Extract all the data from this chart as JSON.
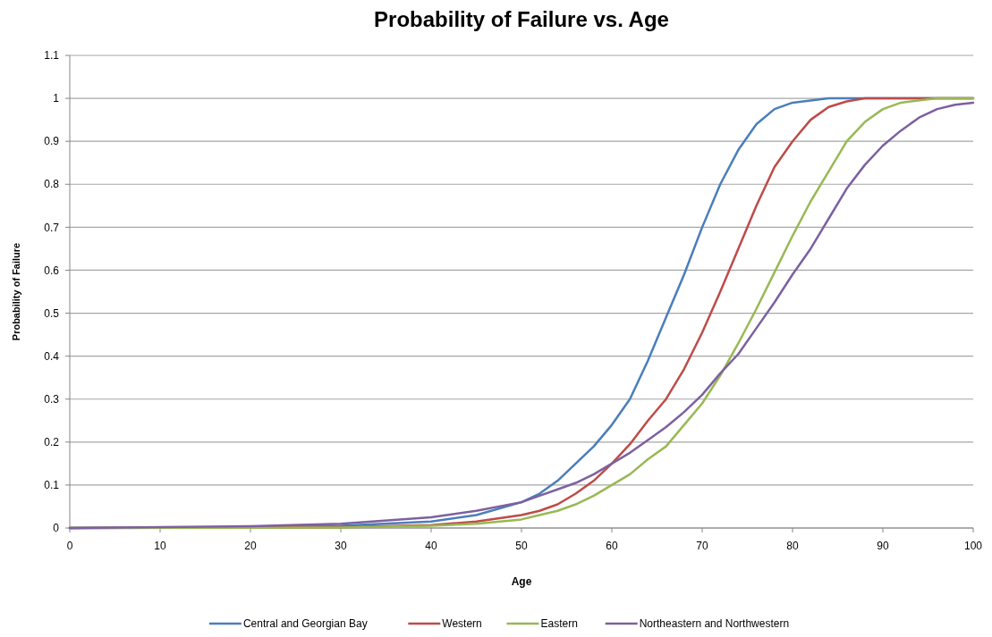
{
  "chart_data": {
    "type": "line",
    "title": "Probability of Failure vs. Age",
    "xlabel": "Age",
    "ylabel": "Probability of Failure",
    "xlim": [
      0,
      100
    ],
    "xticks": [
      0,
      10,
      20,
      30,
      40,
      50,
      60,
      70,
      80,
      90,
      100
    ],
    "ylim": [
      0,
      1.1
    ],
    "yticks": [
      0,
      0.1,
      0.2,
      0.3,
      0.4,
      0.5,
      0.6,
      0.7,
      0.8,
      0.9,
      1,
      1.1
    ],
    "grid": "y",
    "legend": "bottom",
    "marker": "none",
    "line_style": "solid",
    "series": [
      {
        "name": "Central and Georgian Bay",
        "color": "#4a7ebb",
        "x": [
          0,
          20,
          30,
          40,
          45,
          50,
          52,
          54,
          56,
          58,
          60,
          62,
          64,
          66,
          68,
          70,
          72,
          74,
          76,
          78,
          80,
          84,
          100
        ],
        "values": [
          0,
          0.002,
          0.005,
          0.015,
          0.03,
          0.06,
          0.08,
          0.11,
          0.15,
          0.19,
          0.24,
          0.3,
          0.39,
          0.49,
          0.59,
          0.7,
          0.8,
          0.88,
          0.94,
          0.975,
          0.99,
          1,
          1
        ]
      },
      {
        "name": "Western",
        "color": "#be4b48",
        "x": [
          0,
          30,
          40,
          45,
          50,
          52,
          54,
          56,
          58,
          60,
          62,
          64,
          66,
          68,
          70,
          72,
          74,
          76,
          78,
          80,
          82,
          84,
          86,
          88,
          100
        ],
        "values": [
          0,
          0.002,
          0.007,
          0.015,
          0.03,
          0.04,
          0.055,
          0.08,
          0.11,
          0.15,
          0.195,
          0.25,
          0.3,
          0.37,
          0.455,
          0.55,
          0.65,
          0.75,
          0.84,
          0.9,
          0.95,
          0.98,
          0.993,
          1,
          1
        ]
      },
      {
        "name": "Eastern",
        "color": "#98b954",
        "x": [
          0,
          30,
          40,
          45,
          50,
          52,
          54,
          56,
          58,
          60,
          62,
          64,
          66,
          68,
          70,
          72,
          74,
          76,
          78,
          80,
          82,
          84,
          86,
          88,
          90,
          92,
          96,
          100
        ],
        "values": [
          0,
          0.001,
          0.005,
          0.01,
          0.02,
          0.03,
          0.04,
          0.055,
          0.075,
          0.1,
          0.125,
          0.16,
          0.19,
          0.24,
          0.29,
          0.355,
          0.43,
          0.51,
          0.595,
          0.68,
          0.76,
          0.83,
          0.9,
          0.945,
          0.975,
          0.99,
          1,
          1
        ]
      },
      {
        "name": "Northeastern and Northwestern",
        "color": "#7d60a0",
        "x": [
          0,
          20,
          30,
          40,
          45,
          50,
          52,
          54,
          56,
          58,
          60,
          62,
          64,
          66,
          68,
          70,
          72,
          74,
          76,
          78,
          80,
          82,
          84,
          86,
          88,
          90,
          92,
          94,
          96,
          98,
          100
        ],
        "values": [
          0,
          0.004,
          0.01,
          0.025,
          0.04,
          0.06,
          0.075,
          0.09,
          0.105,
          0.125,
          0.15,
          0.175,
          0.205,
          0.235,
          0.27,
          0.31,
          0.36,
          0.405,
          0.465,
          0.525,
          0.59,
          0.65,
          0.72,
          0.79,
          0.845,
          0.89,
          0.925,
          0.955,
          0.975,
          0.985,
          0.99
        ]
      }
    ]
  }
}
